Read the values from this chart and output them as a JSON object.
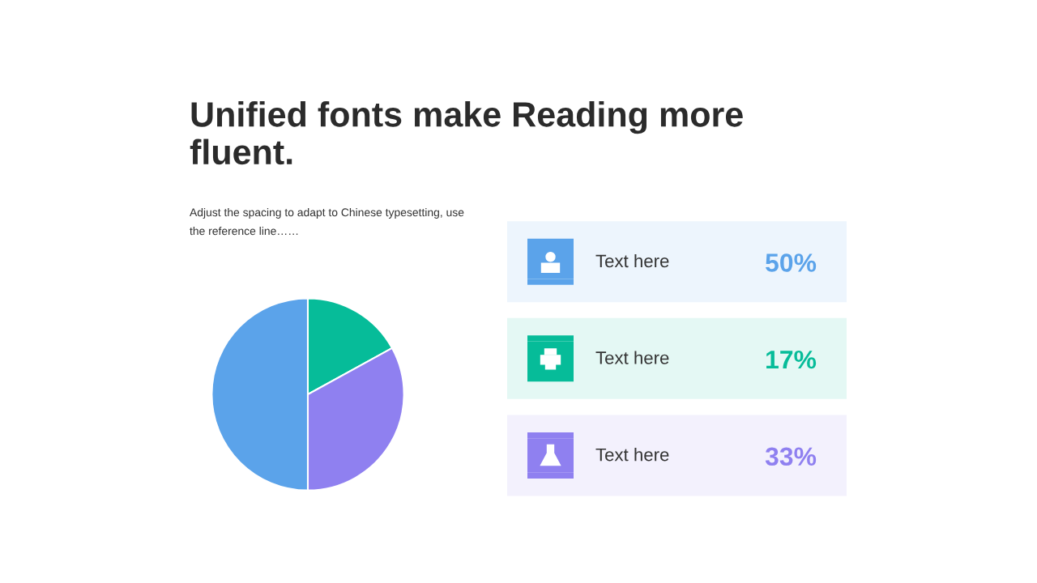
{
  "chart_data": {
    "type": "pie",
    "title": "Unified fonts make Reading more\nfluent.",
    "subtitle": "Adjust the spacing to adapt to Chinese typesetting, use\nthe reference line……",
    "categories": [
      "Text here",
      "Text here",
      "Text here"
    ],
    "values": [
      50,
      17,
      33
    ],
    "colors": [
      "#5ba3ea",
      "#06bc99",
      "#8f80f0"
    ],
    "value_labels": [
      "50%",
      "17%",
      "33%"
    ],
    "legend": "right"
  }
}
